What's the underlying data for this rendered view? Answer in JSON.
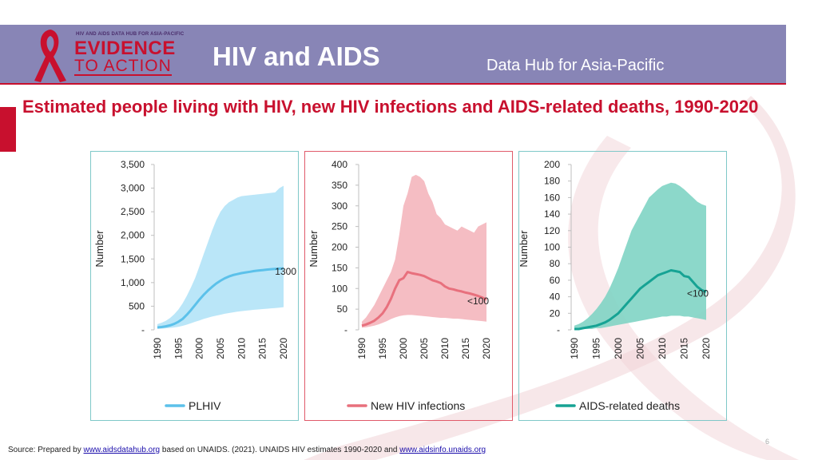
{
  "header": {
    "logo_top": "HIV AND AIDS DATA HUB FOR ASIA-PACIFIC",
    "logo_line1": "EVIDENCE",
    "logo_line2": "TO ACTION",
    "title": "HIV and AIDS",
    "subtitle": "Data Hub for Asia-Pacific"
  },
  "heading": "Estimated people living with HIV, new HIV infections and AIDS-related deaths, 1990-2020",
  "footer": {
    "prefix": "Source: Prepared by ",
    "link1": "www.aidsdatahub.org",
    "middle": " based on UNAIDS. (2021). UNAIDS HIV estimates 1990-2020 and ",
    "link2": "www.aidsinfo.unaids.org"
  },
  "page_number": "6",
  "colors": {
    "brand_red": "#c8102e",
    "header_bg": "#8885b6"
  },
  "chart_data": [
    {
      "type": "area",
      "ylabel": "Number",
      "ylim": [
        0,
        3500
      ],
      "yticks": [
        0,
        500,
        1000,
        1500,
        2000,
        2500,
        3000,
        3500
      ],
      "ytick_labels": [
        "-",
        "500",
        "1,000",
        "1,500",
        "2,000",
        "2,500",
        "3,000",
        "3,500"
      ],
      "xtick_labels": [
        "1990",
        "1995",
        "2000",
        "2005",
        "2010",
        "2015",
        "2020"
      ],
      "x": [
        1990,
        1991,
        1992,
        1993,
        1994,
        1995,
        1996,
        1997,
        1998,
        1999,
        2000,
        2001,
        2002,
        2003,
        2004,
        2005,
        2006,
        2007,
        2008,
        2009,
        2010,
        2011,
        2012,
        2013,
        2014,
        2015,
        2016,
        2017,
        2018,
        2019,
        2020
      ],
      "grid": false,
      "legend": "bottom",
      "annotation": "1300",
      "border_color": "#7fc8c8",
      "series": [
        {
          "name": "PLHIV",
          "color": "#5cc1ea",
          "band_color": "#b3e3f7",
          "values": [
            50,
            60,
            75,
            95,
            125,
            170,
            230,
            320,
            420,
            530,
            640,
            740,
            830,
            910,
            980,
            1040,
            1090,
            1130,
            1160,
            1180,
            1200,
            1215,
            1230,
            1245,
            1255,
            1265,
            1275,
            1283,
            1290,
            1296,
            1300
          ],
          "lower": [
            20,
            25,
            32,
            40,
            50,
            65,
            85,
            110,
            140,
            170,
            200,
            230,
            255,
            280,
            300,
            320,
            340,
            355,
            370,
            385,
            395,
            405,
            415,
            425,
            432,
            440,
            447,
            455,
            462,
            470,
            480
          ],
          "upper": [
            120,
            150,
            190,
            250,
            330,
            430,
            560,
            720,
            900,
            1100,
            1350,
            1600,
            1850,
            2100,
            2320,
            2500,
            2620,
            2700,
            2750,
            2800,
            2830,
            2840,
            2850,
            2860,
            2870,
            2880,
            2890,
            2900,
            2910,
            3000,
            3050
          ]
        }
      ]
    },
    {
      "type": "area",
      "ylabel": "Number",
      "ylim": [
        0,
        400
      ],
      "yticks": [
        0,
        50,
        100,
        150,
        200,
        250,
        300,
        350,
        400
      ],
      "ytick_labels": [
        "-",
        "50",
        "100",
        "150",
        "200",
        "250",
        "300",
        "350",
        "400"
      ],
      "xtick_labels": [
        "1990",
        "1995",
        "2000",
        "2005",
        "2010",
        "2015",
        "2020"
      ],
      "x": [
        1990,
        1991,
        1992,
        1993,
        1994,
        1995,
        1996,
        1997,
        1998,
        1999,
        2000,
        2001,
        2002,
        2003,
        2004,
        2005,
        2006,
        2007,
        2008,
        2009,
        2010,
        2011,
        2012,
        2013,
        2014,
        2015,
        2016,
        2017,
        2018,
        2019,
        2020
      ],
      "grid": false,
      "legend": "bottom",
      "annotation": "<100",
      "border_color": "#e05a6a",
      "series": [
        {
          "name": "New HIV infections",
          "color": "#e8707d",
          "band_color": "#f4b6bd",
          "values": [
            10,
            13,
            17,
            22,
            30,
            40,
            55,
            75,
            100,
            120,
            125,
            140,
            137,
            135,
            133,
            130,
            125,
            120,
            117,
            113,
            105,
            100,
            98,
            95,
            93,
            90,
            88,
            85,
            82,
            78,
            73
          ],
          "lower": [
            5,
            6,
            8,
            10,
            13,
            17,
            21,
            26,
            30,
            33,
            35,
            36,
            36,
            35,
            34,
            33,
            32,
            31,
            30,
            29,
            29,
            28,
            27,
            27,
            26,
            25,
            24,
            23,
            22,
            21,
            20
          ],
          "upper": [
            20,
            30,
            45,
            60,
            80,
            100,
            120,
            140,
            170,
            230,
            300,
            330,
            370,
            375,
            370,
            360,
            330,
            310,
            280,
            270,
            255,
            250,
            245,
            240,
            250,
            245,
            240,
            235,
            250,
            255,
            260
          ]
        }
      ]
    },
    {
      "type": "area",
      "ylabel": "Number",
      "ylim": [
        0,
        200
      ],
      "yticks": [
        0,
        20,
        40,
        60,
        80,
        100,
        120,
        140,
        160,
        180,
        200
      ],
      "ytick_labels": [
        "-",
        "20",
        "40",
        "60",
        "80",
        "100",
        "120",
        "140",
        "160",
        "180",
        "200"
      ],
      "xtick_labels": [
        "1990",
        "1995",
        "2000",
        "2005",
        "2010",
        "2015",
        "2020"
      ],
      "x": [
        1990,
        1991,
        1992,
        1993,
        1994,
        1995,
        1996,
        1997,
        1998,
        1999,
        2000,
        2001,
        2002,
        2003,
        2004,
        2005,
        2006,
        2007,
        2008,
        2009,
        2010,
        2011,
        2012,
        2013,
        2014,
        2015,
        2016,
        2017,
        2018,
        2019,
        2020
      ],
      "grid": false,
      "legend": "bottom",
      "annotation": "<100",
      "border_color": "#7fc8c8",
      "series": [
        {
          "name": "AIDS-related deaths",
          "color": "#16a394",
          "band_color": "#7fd4c4",
          "values": [
            1,
            1,
            2,
            3,
            4,
            5,
            7,
            9,
            12,
            16,
            20,
            26,
            32,
            38,
            44,
            50,
            54,
            58,
            62,
            66,
            68,
            70,
            72,
            71,
            70,
            65,
            64,
            58,
            52,
            48,
            46
          ],
          "lower": [
            0,
            0,
            1,
            1,
            1,
            2,
            2,
            3,
            4,
            5,
            6,
            7,
            8,
            9,
            10,
            11,
            12,
            13,
            14,
            15,
            16,
            16,
            17,
            17,
            17,
            16,
            16,
            15,
            14,
            13,
            12
          ],
          "upper": [
            5,
            7,
            10,
            14,
            19,
            25,
            32,
            40,
            50,
            62,
            75,
            90,
            105,
            120,
            130,
            140,
            150,
            160,
            165,
            170,
            174,
            176,
            178,
            177,
            174,
            170,
            165,
            160,
            155,
            152,
            150
          ]
        }
      ]
    }
  ]
}
